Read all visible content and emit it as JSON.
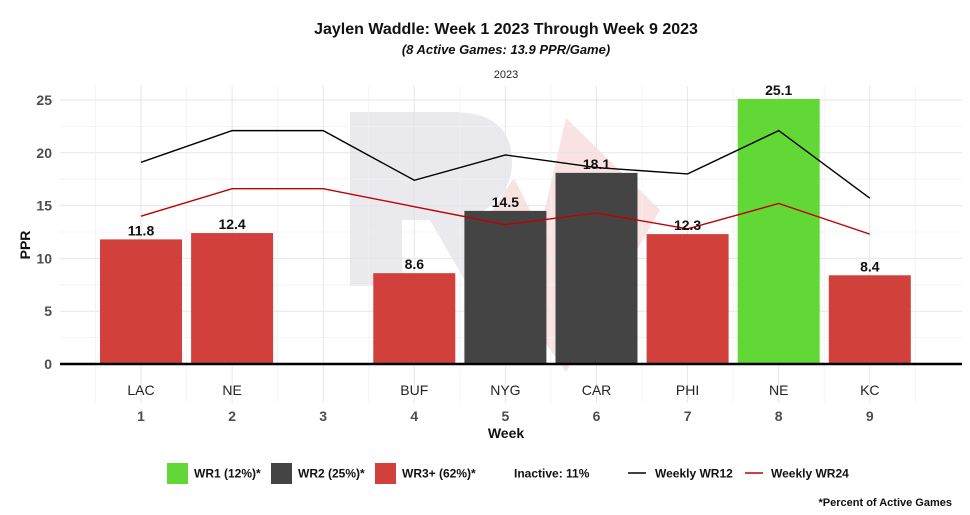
{
  "chart_data": {
    "type": "bar",
    "title": "Jaylen Waddle: Week 1 2023 Through Week 9 2023",
    "subtitle": "(8 Active Games: 13.9 PPR/Game)",
    "facet_label": "2023",
    "xlabel": "Week",
    "ylabel": "PPR",
    "ylim": [
      0,
      26.2
    ],
    "yticks": [
      0,
      5,
      10,
      15,
      20,
      25
    ],
    "grid": true,
    "weeks": [
      {
        "week": "1",
        "opponent": "LAC",
        "ppr": 11.8,
        "label": "11.8",
        "tier": "WR3+"
      },
      {
        "week": "2",
        "opponent": "NE",
        "ppr": 12.4,
        "label": "12.4",
        "tier": "WR3+"
      },
      {
        "week": "3",
        "opponent": "",
        "ppr": null,
        "label": "",
        "tier": "Inactive"
      },
      {
        "week": "4",
        "opponent": "BUF",
        "ppr": 8.6,
        "label": "8.6",
        "tier": "WR3+"
      },
      {
        "week": "5",
        "opponent": "NYG",
        "ppr": 14.5,
        "label": "14.5",
        "tier": "WR2"
      },
      {
        "week": "6",
        "opponent": "CAR",
        "ppr": 18.1,
        "label": "18.1",
        "tier": "WR2"
      },
      {
        "week": "7",
        "opponent": "PHI",
        "ppr": 12.3,
        "label": "12.3",
        "tier": "WR3+"
      },
      {
        "week": "8",
        "opponent": "NE",
        "ppr": 25.1,
        "label": "25.1",
        "tier": "WR1"
      },
      {
        "week": "9",
        "opponent": "KC",
        "ppr": 8.4,
        "label": "8.4",
        "tier": "WR3+"
      }
    ],
    "lines": [
      {
        "name": "Weekly WR12",
        "color": "#000000",
        "values": [
          19.1,
          22.1,
          22.1,
          17.4,
          19.8,
          18.6,
          18.0,
          22.1,
          15.7
        ]
      },
      {
        "name": "Weekly WR24",
        "color": "#c00000",
        "values": [
          14.0,
          16.6,
          16.6,
          14.9,
          13.2,
          14.3,
          12.8,
          15.2,
          12.3
        ]
      }
    ],
    "tier_colors": {
      "WR1": "#61d836",
      "WR2": "#444444",
      "WR3+": "#d1403b"
    },
    "legend": [
      {
        "key": "WR1",
        "label": "WR1 (12%)*",
        "color": "#61d836"
      },
      {
        "key": "WR2",
        "label": "WR2 (25%)*",
        "color": "#444444"
      },
      {
        "key": "WR3+",
        "label": "WR3+ (62%)*",
        "color": "#d1403b"
      },
      {
        "key": "Inactive",
        "label": "Inactive: 11%"
      },
      {
        "key": "Weekly WR12",
        "label": "Weekly WR12",
        "color": "#000000"
      },
      {
        "key": "Weekly WR24",
        "label": "Weekly WR24",
        "color": "#c00000"
      }
    ],
    "footnote": "*Percent of Active Games"
  }
}
